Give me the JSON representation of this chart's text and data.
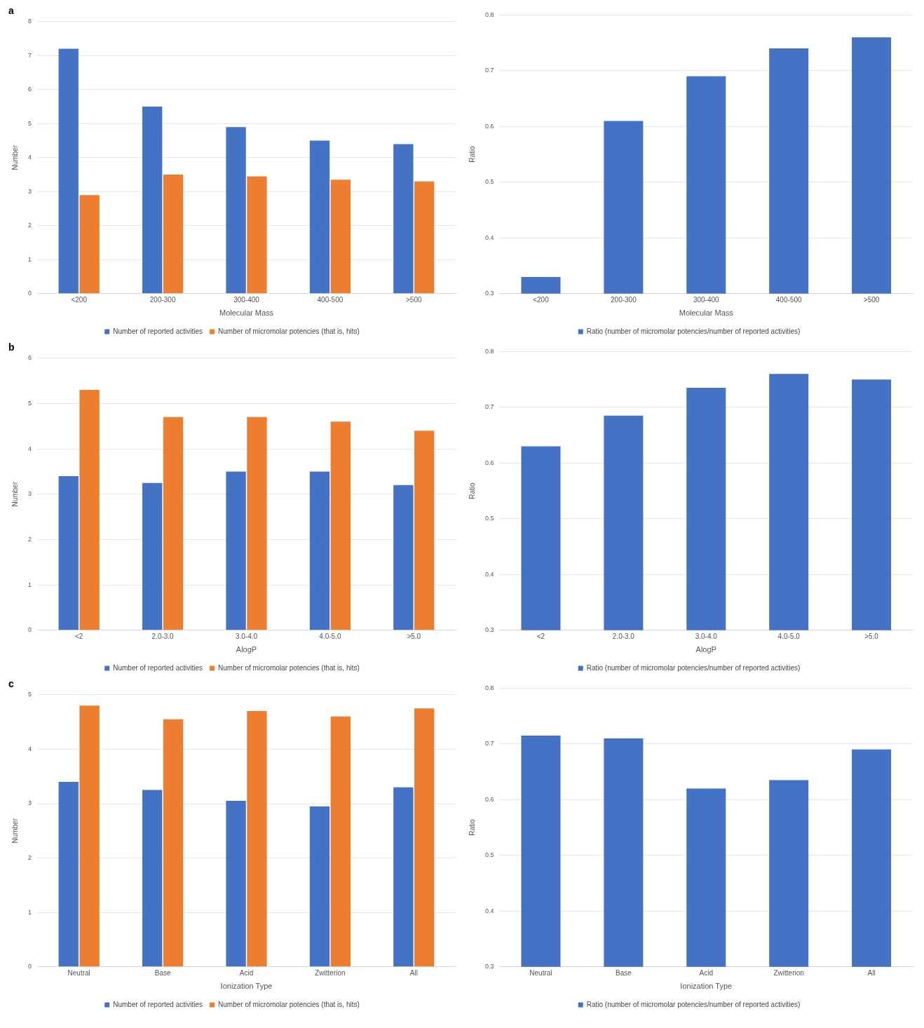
{
  "chart_data": [
    {
      "type": "bar",
      "title": "a",
      "xlabel": "Molecular Mass",
      "ylabel": "Number",
      "categories": [
        "<200",
        "200-300",
        "300-400",
        "400-500",
        ">500"
      ],
      "series": [
        {
          "name": "Number of reported activities",
          "color": "#4472c4",
          "values": [
            7.2,
            5.5,
            4.9,
            4.5,
            4.4
          ]
        },
        {
          "name": "Number of micromolar potencies (that is, hits)",
          "color": "#ed7d31",
          "values": [
            2.9,
            3.5,
            3.45,
            3.35,
            3.3
          ]
        }
      ],
      "ylim": [
        0,
        8
      ],
      "yticks": [
        0,
        1,
        2,
        3,
        4,
        5,
        6,
        7,
        8
      ],
      "grid": "y",
      "legend": "bottom"
    },
    {
      "type": "bar",
      "xlabel": "Molecular Mass",
      "ylabel": "Ratio",
      "categories": [
        "<200",
        "200-300",
        "300-400",
        "400-500",
        ">500"
      ],
      "series": [
        {
          "name": "Ratio (number of micromolar potencies/number of reported activities)",
          "color": "#4472c4",
          "values": [
            0.33,
            0.61,
            0.69,
            0.74,
            0.76
          ]
        }
      ],
      "ylim": [
        0.3,
        0.8
      ],
      "yticks": [
        0.3,
        0.4,
        0.5,
        0.6,
        0.7,
        0.8
      ],
      "grid": "y",
      "legend": "bottom"
    },
    {
      "type": "bar",
      "title": "b",
      "xlabel": "AlogP",
      "ylabel": "Number",
      "categories": [
        "<2",
        "2.0-3.0",
        "3.0-4.0",
        "4.0-5.0",
        ">5.0"
      ],
      "series": [
        {
          "name": "Number of reported activities",
          "color": "#4472c4",
          "values": [
            3.4,
            3.25,
            3.5,
            3.5,
            3.2
          ]
        },
        {
          "name": "Number of micromolar potencies (that is, hits)",
          "color": "#ed7d31",
          "values": [
            5.3,
            4.7,
            4.7,
            4.6,
            4.4
          ]
        }
      ],
      "ylim": [
        0,
        6
      ],
      "yticks": [
        0,
        1,
        2,
        3,
        4,
        5,
        6
      ],
      "grid": "y",
      "legend": "bottom"
    },
    {
      "type": "bar",
      "xlabel": "AlogP",
      "ylabel": "Ratio",
      "categories": [
        "<2",
        "2.0-3.0",
        "3.0-4.0",
        "4.0-5.0",
        ">5.0"
      ],
      "series": [
        {
          "name": "Ratio (number of micromolar potencies/number of reported activities)",
          "color": "#4472c4",
          "values": [
            0.63,
            0.685,
            0.735,
            0.76,
            0.75
          ]
        }
      ],
      "ylim": [
        0.3,
        0.8
      ],
      "yticks": [
        0.3,
        0.4,
        0.5,
        0.6,
        0.7,
        0.8
      ],
      "grid": "y",
      "legend": "bottom"
    },
    {
      "type": "bar",
      "title": "c",
      "xlabel": "Ionization Type",
      "ylabel": "Number",
      "categories": [
        "Neutral",
        "Base",
        "Acid",
        "Zwitterion",
        "All"
      ],
      "series": [
        {
          "name": "Number of reported activities",
          "color": "#4472c4",
          "values": [
            3.4,
            3.25,
            3.05,
            2.95,
            3.3
          ]
        },
        {
          "name": "Number of micromolar potencies (that is, hits)",
          "color": "#ed7d31",
          "values": [
            4.8,
            4.55,
            4.7,
            4.6,
            4.75
          ]
        }
      ],
      "ylim": [
        0,
        5
      ],
      "yticks": [
        0,
        1,
        2,
        3,
        4,
        5
      ],
      "grid": "y",
      "legend": "bottom"
    },
    {
      "type": "bar",
      "xlabel": "Ionization Type",
      "ylabel": "Ratio",
      "categories": [
        "Neutral",
        "Base",
        "Acid",
        "Zwitterion",
        "All"
      ],
      "series": [
        {
          "name": "Ratio (number of micromolar potencies/number of reported activities)",
          "color": "#4472c4",
          "values": [
            0.715,
            0.71,
            0.62,
            0.635,
            0.69
          ]
        }
      ],
      "ylim": [
        0.3,
        0.8
      ],
      "yticks": [
        0.3,
        0.4,
        0.5,
        0.6,
        0.7,
        0.8
      ],
      "grid": "y",
      "legend": "bottom"
    }
  ]
}
